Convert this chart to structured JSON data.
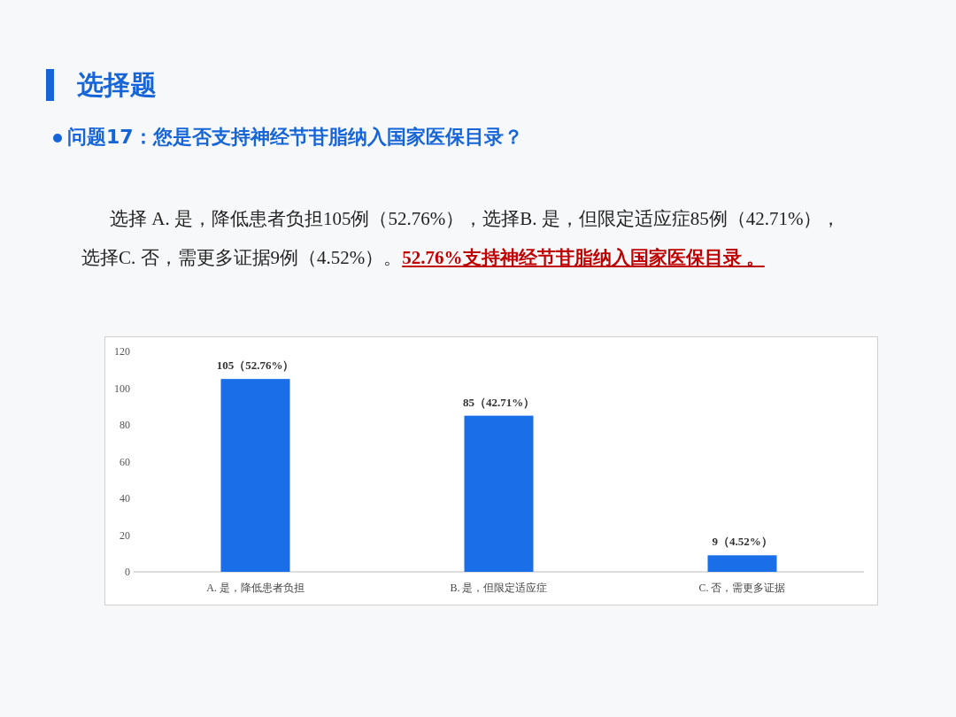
{
  "chart_data": {
    "type": "bar",
    "title": "选择题",
    "subtitle": "问题17：您是否支持神经节苷脂纳入国家医保目录？",
    "annotations": [
      "选择 A. 是，降低患者负担105例（52.76%），选择B. 是，但限定适应症85例（42.71%），选择C. 否，需更多证据9例（4.52%）。",
      "52.76%支持神经节苷脂纳入国家医保目录 。"
    ],
    "categories": [
      "A. 是，降低患者负担",
      "B. 是，但限定适应症",
      "C. 否，需更多证据"
    ],
    "values": [
      105,
      85,
      9
    ],
    "value_labels": [
      "105（52.76%）",
      "85（42.71%）",
      "9（4.52%）"
    ],
    "color": "#1a6ee8",
    "ylim": [
      0,
      120
    ],
    "yticks": [
      0,
      20,
      40,
      60,
      80,
      100,
      120
    ],
    "grid": false
  }
}
